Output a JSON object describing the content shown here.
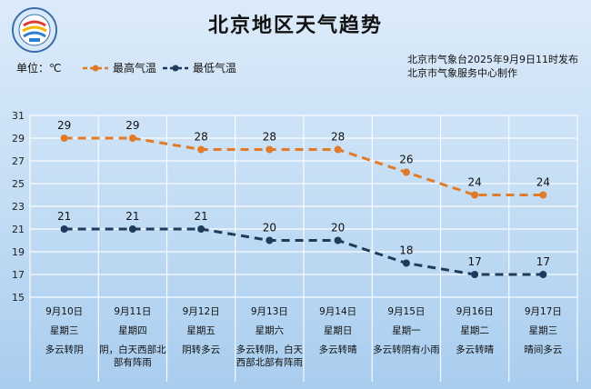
{
  "title": "北京地区天气趋势",
  "unit_label": "单位：℃",
  "legend": {
    "high": "最高气温",
    "low": "最低气温"
  },
  "publisher": {
    "line1": "北京市气象台2025年9月9日11时发布",
    "line2": "北京市气象服务中心制作"
  },
  "colors": {
    "high": "#e07b2a",
    "low": "#1f3b5c",
    "grid": "#ffffff"
  },
  "chart_data": {
    "type": "line",
    "title": "北京地区天气趋势",
    "ylabel": "单位：℃",
    "ylim": [
      15,
      31
    ],
    "yticks": [
      15,
      17,
      19,
      21,
      23,
      25,
      27,
      29,
      31
    ],
    "grid": true,
    "legend_position": "top",
    "categories": [
      "9月10日",
      "9月11日",
      "9月12日",
      "9月13日",
      "9月14日",
      "9月15日",
      "9月16日",
      "9月17日"
    ],
    "weekdays": [
      "星期三",
      "星期四",
      "星期五",
      "星期六",
      "星期日",
      "星期一",
      "星期二",
      "星期三"
    ],
    "conditions": [
      "多云转阴",
      "阴，白天西部北部有阵雨",
      "阴转多云",
      "多云转阴，白天西部北部有阵雨",
      "多云转晴",
      "多云转阴有小雨",
      "多云转晴",
      "晴间多云"
    ],
    "series": [
      {
        "name": "最高气温",
        "values": [
          29,
          29,
          28,
          28,
          28,
          26,
          24,
          24
        ]
      },
      {
        "name": "最低气温",
        "values": [
          21,
          21,
          21,
          20,
          20,
          18,
          17,
          17
        ]
      }
    ]
  }
}
